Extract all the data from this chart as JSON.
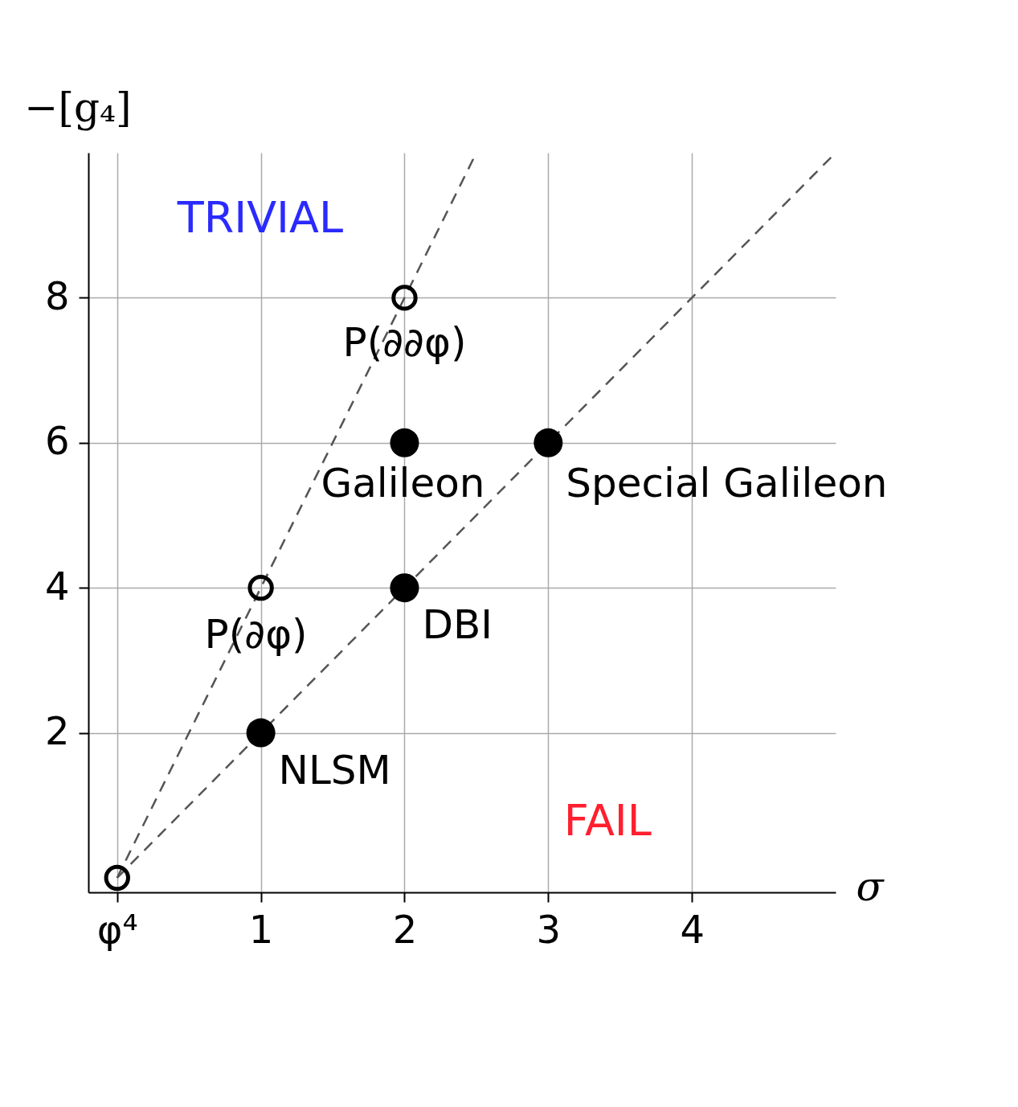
{
  "chart_data": {
    "type": "scatter",
    "xlabel": "σ",
    "ylabel": "−[g₄]",
    "xlim": [
      -0.2,
      5
    ],
    "ylim": [
      -0.2,
      10
    ],
    "xticks": [
      {
        "value": 0,
        "label": "φ⁴"
      },
      1,
      2,
      3,
      4
    ],
    "yticks": [
      2,
      4,
      6,
      8
    ],
    "grid": true,
    "series": [
      {
        "type": "line",
        "color": "#555555",
        "line_style": "dashed",
        "x": [
          0,
          2.5
        ],
        "values": [
          0,
          10
        ]
      },
      {
        "type": "line",
        "color": "#555555",
        "line_style": "dashed",
        "x": [
          0,
          5
        ],
        "values": [
          0,
          10
        ]
      },
      {
        "color": "#000000",
        "marker": "circle",
        "x": [
          1,
          2,
          2,
          3
        ],
        "values": [
          2,
          4,
          6,
          6
        ]
      },
      {
        "color": "#000000",
        "marker": "circle",
        "x": [
          0,
          1,
          2
        ],
        "values": [
          0,
          4,
          8
        ]
      }
    ],
    "annotations": [
      "TRIVIAL",
      "FAIL",
      {
        "text": "NLSM",
        "x": 1,
        "y": 2
      },
      {
        "text": "DBI",
        "x": 2,
        "y": 4
      },
      {
        "text": "Galileon",
        "x": 2,
        "y": 6
      },
      {
        "text": "Special Galileon",
        "x": 3,
        "y": 6
      },
      {
        "text": "P(∂φ)",
        "x": 1,
        "y": 4
      },
      {
        "text": "P(∂∂φ)",
        "x": 2,
        "y": 8
      }
    ]
  }
}
